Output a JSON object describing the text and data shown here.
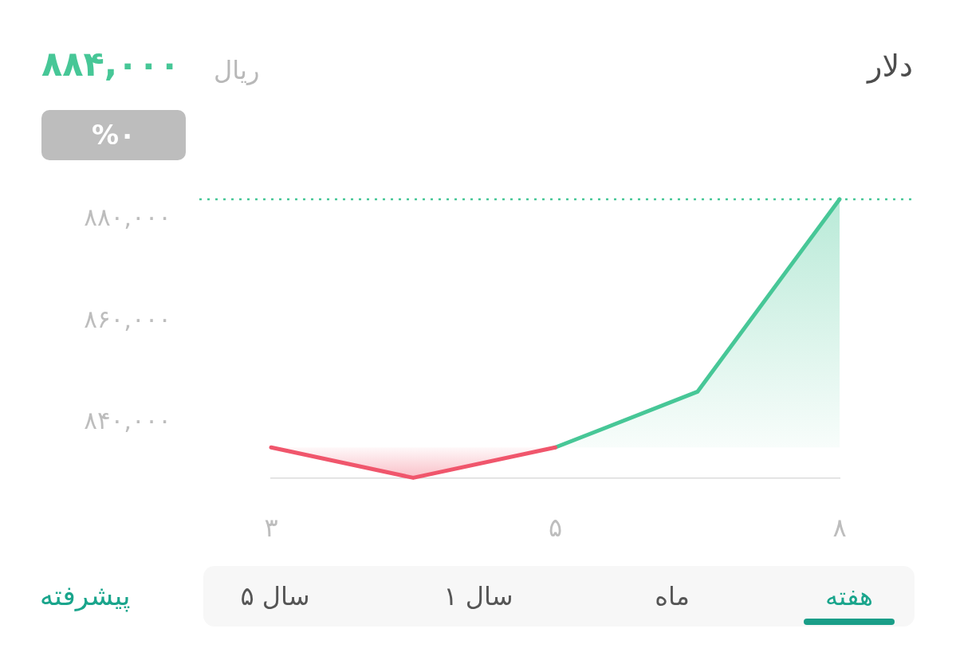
{
  "chart_data": {
    "type": "area",
    "title": "دلار",
    "subtitle": "۸۸۴,۰۰۰",
    "annotations": [
      "ریال",
      "%۰",
      "هفته",
      "ماه",
      "۱ سال",
      "۵ سال",
      "پیشرفته"
    ],
    "categories": [
      "۳",
      null,
      "۵",
      null,
      "۸"
    ],
    "series": [
      {
        "color": "#f0566c",
        "values": [
          835000,
          829000,
          835000,
          null,
          null
        ]
      },
      {
        "color": "#47c797",
        "values": [
          null,
          null,
          835000,
          846000,
          884000
        ]
      }
    ],
    "ylim": [
      829000,
      884000
    ],
    "yticks": [
      {
        "value": 840000,
        "label": "۸۴۰,۰۰۰"
      },
      {
        "value": 860000,
        "label": "۸۶۰,۰۰۰"
      },
      {
        "value": 880000,
        "label": "۸۸۰,۰۰۰"
      }
    ],
    "ref_lines": [
      {
        "axis": "y",
        "value": 884000,
        "color": "#47c797",
        "line_style": "dotted"
      }
    ],
    "grid": false,
    "legend": false,
    "marker": "none",
    "line_style": "solid"
  }
}
